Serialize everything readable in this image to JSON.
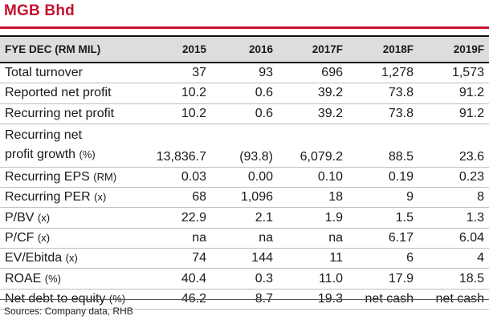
{
  "title": "MGB Bhd",
  "header": {
    "label": "FYE DEC (RM MIL)",
    "years": [
      "2015",
      "2016",
      "2017F",
      "2018F",
      "2019F"
    ]
  },
  "rows": [
    {
      "label": "Total turnover",
      "unit": "",
      "values": [
        "37",
        "93",
        "696",
        "1,278",
        "1,573"
      ]
    },
    {
      "label": "Reported net profit",
      "unit": "",
      "values": [
        "10.2",
        "0.6",
        "39.2",
        "73.8",
        "91.2"
      ]
    },
    {
      "label": "Recurring net profit",
      "unit": "",
      "values": [
        "10.2",
        "0.6",
        "39.2",
        "73.8",
        "91.2"
      ]
    },
    {
      "label_line1": "Recurring net",
      "label_line2": "profit growth",
      "unit": "(%)",
      "values": [
        "13,836.7",
        "(93.8)",
        "6,079.2",
        "88.5",
        "23.6"
      ]
    },
    {
      "label": "Recurring EPS",
      "unit": "(RM)",
      "values": [
        "0.03",
        "0.00",
        "0.10",
        "0.19",
        "0.23"
      ]
    },
    {
      "label": "Recurring PER",
      "unit": "(x)",
      "values": [
        "68",
        "1,096",
        "18",
        "9",
        "8"
      ]
    },
    {
      "label": "P/BV",
      "unit": "(x)",
      "values": [
        "22.9",
        "2.1",
        "1.9",
        "1.5",
        "1.3"
      ]
    },
    {
      "label": "P/CF",
      "unit": "(x)",
      "values": [
        "na",
        "na",
        "na",
        "6.17",
        "6.04"
      ]
    },
    {
      "label": "EV/Ebitda",
      "unit": "(x)",
      "values": [
        "74",
        "144",
        "11",
        "6",
        "4"
      ]
    },
    {
      "label": "ROAE",
      "unit": "(%)",
      "values": [
        "40.4",
        "0.3",
        "11.0",
        "17.9",
        "18.5"
      ]
    },
    {
      "label": "Net debt to equity",
      "unit": "(%)",
      "values": [
        "46.2",
        "8.7",
        "19.3",
        "net cash",
        "net cash"
      ]
    }
  ],
  "source": "Sources: Company data, RHB",
  "colors": {
    "title": "#c8102e",
    "header_band": "#dddddd"
  }
}
